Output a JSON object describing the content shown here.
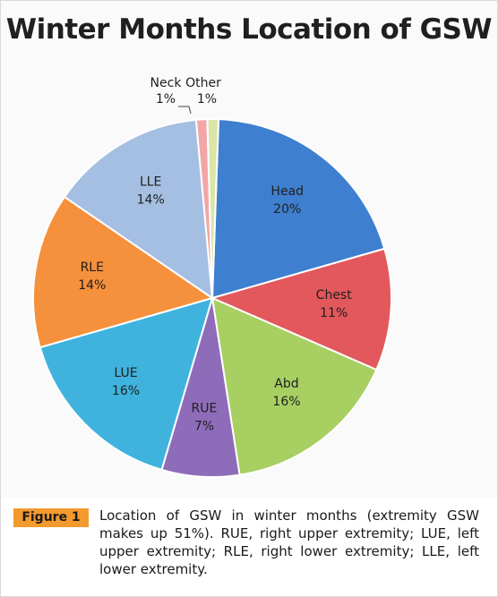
{
  "chart_data": {
    "type": "pie",
    "title": "Winter Months Location of GSW",
    "slices": [
      {
        "label": "Head",
        "value": 20,
        "value_label": "20%",
        "color": "#3f7fcf"
      },
      {
        "label": "Chest",
        "value": 11,
        "value_label": "11%",
        "color": "#e2585c"
      },
      {
        "label": "Abd",
        "value": 16,
        "value_label": "16%",
        "color": "#a7cf62"
      },
      {
        "label": "RUE",
        "value": 7,
        "value_label": "7%",
        "color": "#8f6cba"
      },
      {
        "label": "LUE",
        "value": 16,
        "value_label": "16%",
        "color": "#3fb3dd"
      },
      {
        "label": "RLE",
        "value": 14,
        "value_label": "14%",
        "color": "#f5903c"
      },
      {
        "label": "LLE",
        "value": 14,
        "value_label": "14%",
        "color": "#a5bfe2"
      },
      {
        "label": "Neck",
        "value": 1,
        "value_label": "1%",
        "color": "#f2a6a7"
      },
      {
        "label": "Other",
        "value": 1,
        "value_label": "1%",
        "color": "#dbe5a6"
      }
    ]
  },
  "figure": {
    "tag": "Figure 1",
    "caption": "Location of GSW in winter months (extremity GSW makes up 51%). RUE, right upper extremity; LUE, left upper extremity; RLE, right lower extremity; LLE, left lower extremity."
  }
}
